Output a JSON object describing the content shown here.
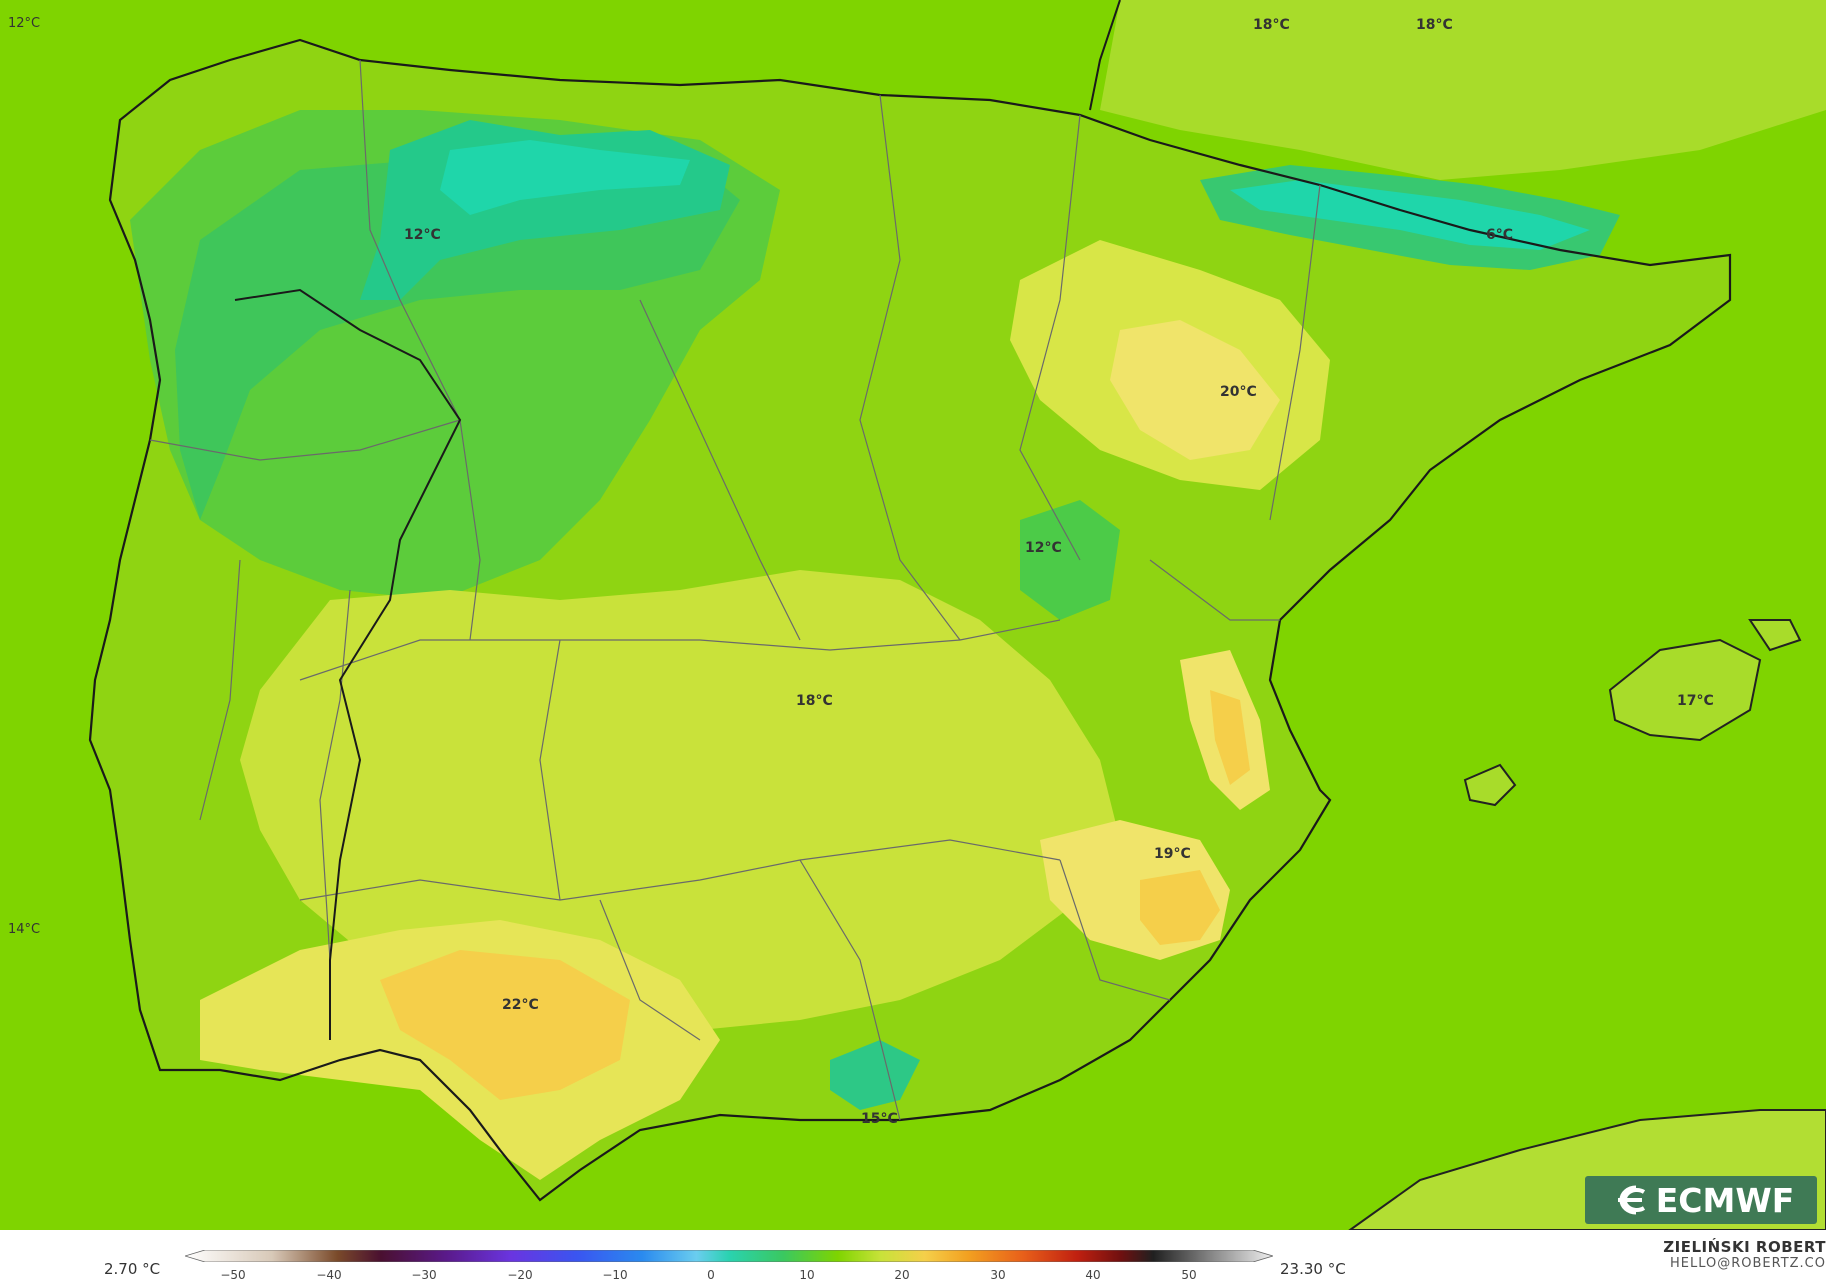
{
  "map": {
    "labels": [
      {
        "text": "12°C",
        "id": "temp-label-nw-sea"
      },
      {
        "text": "18°C",
        "id": "temp-label-north-france-1"
      },
      {
        "text": "18°C",
        "id": "temp-label-north-france-2"
      },
      {
        "text": "12°C",
        "id": "temp-label-cantabrian"
      },
      {
        "text": "6°C",
        "id": "temp-label-pyrenees"
      },
      {
        "text": "20°C",
        "id": "temp-label-ebro"
      },
      {
        "text": "12°C",
        "id": "temp-label-iberian-system"
      },
      {
        "text": "18°C",
        "id": "temp-label-central"
      },
      {
        "text": "17°C",
        "id": "temp-label-mallorca"
      },
      {
        "text": "19°C",
        "id": "temp-label-murcia"
      },
      {
        "text": "14°C",
        "id": "temp-label-atlantic"
      },
      {
        "text": "22°C",
        "id": "temp-label-guadalquivir"
      },
      {
        "text": "15°C",
        "id": "temp-label-sierra-nevada"
      }
    ]
  },
  "logo": {
    "text": "ECMWF"
  },
  "scale": {
    "min": "2.70 °C",
    "max": "23.30 °C",
    "ticks": [
      "−50",
      "−40",
      "−30",
      "−20",
      "−10",
      "0",
      "10",
      "20",
      "30",
      "40",
      "50"
    ]
  },
  "author": {
    "name": "ZIELIŃSKI ROBERT",
    "email": "HELLO@ROBERTZ.CO"
  },
  "colors": {
    "sea": "#7fd400",
    "warm": "#f2e36b",
    "hot": "#f5cf4a",
    "cold": "#2dc886",
    "coldest": "#1fd6aa",
    "logo_bg": "#3f7a55"
  }
}
